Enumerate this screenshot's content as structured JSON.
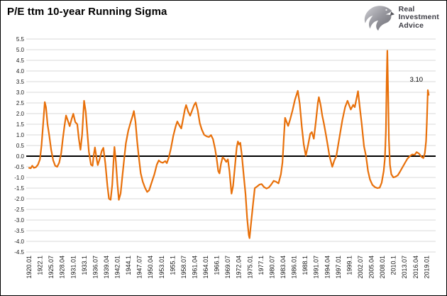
{
  "logo": {
    "lines": [
      "Real",
      "Investment",
      "Advice"
    ]
  },
  "colors": {
    "line": "#E8700A",
    "grid": "#D9D9D9",
    "zero_line": "#000000",
    "axis_text": "#1A1A1A",
    "title_text": "#000000",
    "logo_text": "#3E3E46",
    "background": "#FFFFFF"
  },
  "chart_data": {
    "type": "line",
    "title": "P/E ttm 10-year Running Sigma",
    "xlabel": "",
    "ylabel": "",
    "ylim": [
      -4.5,
      5.5
    ],
    "ytick_step": 0.5,
    "grid": "horizontal-only",
    "legend": "none",
    "y_tick_labels": [
      "5.5",
      "5.0",
      "4.5",
      "4.0",
      "3.5",
      "3.0",
      "2.5",
      "2.0",
      "1.5",
      "1.0",
      "0.5",
      "0.0",
      "-0.5",
      "-1.0",
      "-1.5",
      "-2.0",
      "-2.5",
      "-3.0",
      "-3.5",
      "-4.0",
      "-4.5"
    ],
    "x_tick_labels": [
      "1920.01",
      "1922.1",
      "1925.07",
      "1928.04",
      "1931.01",
      "1933.1",
      "1936.07",
      "1939.04",
      "1942.01",
      "1944.1",
      "1947.07",
      "1950.04",
      "1953.01",
      "1955.1",
      "1958.07",
      "1961.04",
      "1964.01",
      "1966.1",
      "1969.07",
      "1972.04",
      "1975.01",
      "1977.1",
      "1980.07",
      "1983.04",
      "1986.01",
      "1988.1",
      "1991.07",
      "1994.04",
      "1997.01",
      "1999.1",
      "2002.07",
      "2005.04",
      "2008.01",
      "2010.1",
      "2013.07",
      "2016.04",
      "2019.01"
    ],
    "annotation": {
      "text": "3.10",
      "year": 2014.8,
      "value": 3.5
    },
    "series": [
      {
        "name": "P/E ttm 10-year running sigma",
        "color": "#E8700A",
        "points": [
          [
            1920.0,
            -0.55
          ],
          [
            1920.4,
            -0.57
          ],
          [
            1920.8,
            -0.45
          ],
          [
            1921.2,
            -0.55
          ],
          [
            1921.7,
            -0.52
          ],
          [
            1922.2,
            -0.4
          ],
          [
            1922.7,
            -0.15
          ],
          [
            1923.1,
            0.5
          ],
          [
            1923.5,
            1.5
          ],
          [
            1923.9,
            2.54
          ],
          [
            1924.2,
            2.3
          ],
          [
            1924.6,
            1.5
          ],
          [
            1925.0,
            1.0
          ],
          [
            1925.5,
            0.3
          ],
          [
            1926.0,
            -0.2
          ],
          [
            1926.5,
            -0.45
          ],
          [
            1927.0,
            -0.5
          ],
          [
            1927.5,
            -0.3
          ],
          [
            1928.0,
            0.15
          ],
          [
            1928.4,
            0.8
          ],
          [
            1928.8,
            1.4
          ],
          [
            1929.2,
            1.91
          ],
          [
            1929.6,
            1.7
          ],
          [
            1930.1,
            1.41
          ],
          [
            1930.6,
            1.75
          ],
          [
            1931.0,
            1.99
          ],
          [
            1931.5,
            1.6
          ],
          [
            1932.0,
            1.5
          ],
          [
            1932.4,
            0.8
          ],
          [
            1932.8,
            0.3
          ],
          [
            1933.2,
            1.0
          ],
          [
            1933.7,
            2.6
          ],
          [
            1934.1,
            2.1
          ],
          [
            1934.5,
            1.1
          ],
          [
            1934.9,
            0.2
          ],
          [
            1935.4,
            -0.4
          ],
          [
            1935.8,
            -0.45
          ],
          [
            1936.1,
            0.05
          ],
          [
            1936.4,
            0.41
          ],
          [
            1936.8,
            -0.1
          ],
          [
            1937.1,
            -0.42
          ],
          [
            1937.6,
            -0.12
          ],
          [
            1938.1,
            0.25
          ],
          [
            1938.5,
            0.39
          ],
          [
            1939.0,
            -0.35
          ],
          [
            1939.5,
            -1.4
          ],
          [
            1939.9,
            -2.0
          ],
          [
            1940.3,
            -2.05
          ],
          [
            1940.7,
            -1.35
          ],
          [
            1941.0,
            -0.3
          ],
          [
            1941.25,
            0.43
          ],
          [
            1941.6,
            -0.25
          ],
          [
            1942.0,
            -1.3
          ],
          [
            1942.35,
            -2.05
          ],
          [
            1942.8,
            -1.75
          ],
          [
            1943.2,
            -1.0
          ],
          [
            1943.7,
            -0.1
          ],
          [
            1944.1,
            0.6
          ],
          [
            1944.7,
            1.2
          ],
          [
            1945.3,
            1.6
          ],
          [
            1945.8,
            1.9
          ],
          [
            1946.1,
            2.12
          ],
          [
            1946.5,
            1.6
          ],
          [
            1946.9,
            0.7
          ],
          [
            1947.3,
            0.0
          ],
          [
            1947.8,
            -0.8
          ],
          [
            1948.3,
            -1.2
          ],
          [
            1948.9,
            -1.5
          ],
          [
            1949.4,
            -1.68
          ],
          [
            1949.9,
            -1.6
          ],
          [
            1950.5,
            -1.25
          ],
          [
            1951.2,
            -0.85
          ],
          [
            1951.8,
            -0.4
          ],
          [
            1952.3,
            -0.2
          ],
          [
            1952.8,
            -0.28
          ],
          [
            1953.3,
            -0.31
          ],
          [
            1953.9,
            -0.23
          ],
          [
            1954.3,
            -0.33
          ],
          [
            1954.8,
            -0.05
          ],
          [
            1955.3,
            0.35
          ],
          [
            1955.9,
            0.95
          ],
          [
            1956.5,
            1.4
          ],
          [
            1956.9,
            1.63
          ],
          [
            1957.4,
            1.45
          ],
          [
            1957.9,
            1.3
          ],
          [
            1958.3,
            1.7
          ],
          [
            1958.8,
            2.2
          ],
          [
            1959.1,
            2.4
          ],
          [
            1959.6,
            2.1
          ],
          [
            1960.1,
            1.9
          ],
          [
            1960.6,
            2.15
          ],
          [
            1961.1,
            2.4
          ],
          [
            1961.5,
            2.52
          ],
          [
            1962.0,
            2.15
          ],
          [
            1962.5,
            1.55
          ],
          [
            1963.0,
            1.25
          ],
          [
            1963.6,
            1.0
          ],
          [
            1964.2,
            0.93
          ],
          [
            1964.8,
            0.9
          ],
          [
            1965.3,
            0.99
          ],
          [
            1965.8,
            0.8
          ],
          [
            1966.3,
            0.35
          ],
          [
            1966.7,
            -0.1
          ],
          [
            1967.1,
            -0.7
          ],
          [
            1967.4,
            -0.81
          ],
          [
            1967.8,
            -0.35
          ],
          [
            1968.2,
            -0.05
          ],
          [
            1968.7,
            -0.15
          ],
          [
            1969.1,
            -0.27
          ],
          [
            1969.5,
            -0.15
          ],
          [
            1969.9,
            -0.7
          ],
          [
            1970.4,
            -1.76
          ],
          [
            1970.8,
            -1.4
          ],
          [
            1971.2,
            -0.6
          ],
          [
            1971.7,
            0.4
          ],
          [
            1972.0,
            0.69
          ],
          [
            1972.3,
            0.55
          ],
          [
            1972.6,
            0.63
          ],
          [
            1973.0,
            0.0
          ],
          [
            1973.4,
            -0.8
          ],
          [
            1973.9,
            -1.8
          ],
          [
            1974.3,
            -2.9
          ],
          [
            1974.7,
            -3.7
          ],
          [
            1974.9,
            -3.85
          ],
          [
            1975.3,
            -3.1
          ],
          [
            1975.8,
            -2.2
          ],
          [
            1976.2,
            -1.5
          ],
          [
            1976.8,
            -1.42
          ],
          [
            1977.4,
            -1.33
          ],
          [
            1977.9,
            -1.31
          ],
          [
            1978.5,
            -1.45
          ],
          [
            1979.1,
            -1.52
          ],
          [
            1979.7,
            -1.47
          ],
          [
            1980.3,
            -1.33
          ],
          [
            1980.9,
            -1.16
          ],
          [
            1981.5,
            -1.2
          ],
          [
            1982.1,
            -1.28
          ],
          [
            1982.7,
            -0.85
          ],
          [
            1983.1,
            -0.3
          ],
          [
            1983.45,
            0.9
          ],
          [
            1983.75,
            1.8
          ],
          [
            1984.1,
            1.62
          ],
          [
            1984.5,
            1.42
          ],
          [
            1985.0,
            1.72
          ],
          [
            1985.6,
            2.15
          ],
          [
            1986.2,
            2.65
          ],
          [
            1986.9,
            3.07
          ],
          [
            1987.4,
            2.45
          ],
          [
            1987.9,
            1.4
          ],
          [
            1988.4,
            0.55
          ],
          [
            1988.9,
            0.02
          ],
          [
            1989.5,
            0.55
          ],
          [
            1990.0,
            1.05
          ],
          [
            1990.4,
            1.13
          ],
          [
            1990.9,
            0.82
          ],
          [
            1991.4,
            1.6
          ],
          [
            1991.9,
            2.5
          ],
          [
            1992.15,
            2.77
          ],
          [
            1992.6,
            2.4
          ],
          [
            1993.0,
            1.9
          ],
          [
            1993.4,
            1.55
          ],
          [
            1993.9,
            1.02
          ],
          [
            1994.4,
            0.47
          ],
          [
            1994.8,
            0.0
          ],
          [
            1995.5,
            -0.5
          ],
          [
            1996.0,
            -0.2
          ],
          [
            1996.5,
            0.0
          ],
          [
            1997.2,
            0.8
          ],
          [
            1998.0,
            1.69
          ],
          [
            1998.7,
            2.3
          ],
          [
            1999.3,
            2.6
          ],
          [
            2000.1,
            2.19
          ],
          [
            2000.7,
            2.41
          ],
          [
            2001.1,
            2.3
          ],
          [
            2001.9,
            3.05
          ],
          [
            2002.4,
            2.2
          ],
          [
            2002.8,
            1.58
          ],
          [
            2003.4,
            0.47
          ],
          [
            2003.9,
            0.0
          ],
          [
            2004.4,
            -0.7
          ],
          [
            2004.9,
            -1.1
          ],
          [
            2005.5,
            -1.35
          ],
          [
            2006.1,
            -1.45
          ],
          [
            2006.7,
            -1.5
          ],
          [
            2007.3,
            -1.48
          ],
          [
            2007.8,
            -1.25
          ],
          [
            2008.3,
            -0.7
          ],
          [
            2008.6,
            -0.1
          ],
          [
            2008.85,
            1.2
          ],
          [
            2009.05,
            3.6
          ],
          [
            2009.2,
            4.95
          ],
          [
            2009.4,
            3.0
          ],
          [
            2009.6,
            0.8
          ],
          [
            2009.85,
            -0.4
          ],
          [
            2010.2,
            -0.85
          ],
          [
            2010.7,
            -1.0
          ],
          [
            2011.2,
            -0.97
          ],
          [
            2011.8,
            -0.9
          ],
          [
            2012.3,
            -0.75
          ],
          [
            2012.9,
            -0.55
          ],
          [
            2013.5,
            -0.35
          ],
          [
            2014.2,
            -0.12
          ],
          [
            2014.8,
            0.0
          ],
          [
            2015.4,
            0.08
          ],
          [
            2016.0,
            0.06
          ],
          [
            2016.5,
            0.19
          ],
          [
            2017.1,
            0.12
          ],
          [
            2017.7,
            -0.03
          ],
          [
            2018.2,
            -0.09
          ],
          [
            2018.55,
            0.15
          ],
          [
            2018.85,
            0.7
          ],
          [
            2019.05,
            1.6
          ],
          [
            2019.3,
            3.1
          ],
          [
            2019.5,
            2.88
          ]
        ]
      }
    ]
  }
}
